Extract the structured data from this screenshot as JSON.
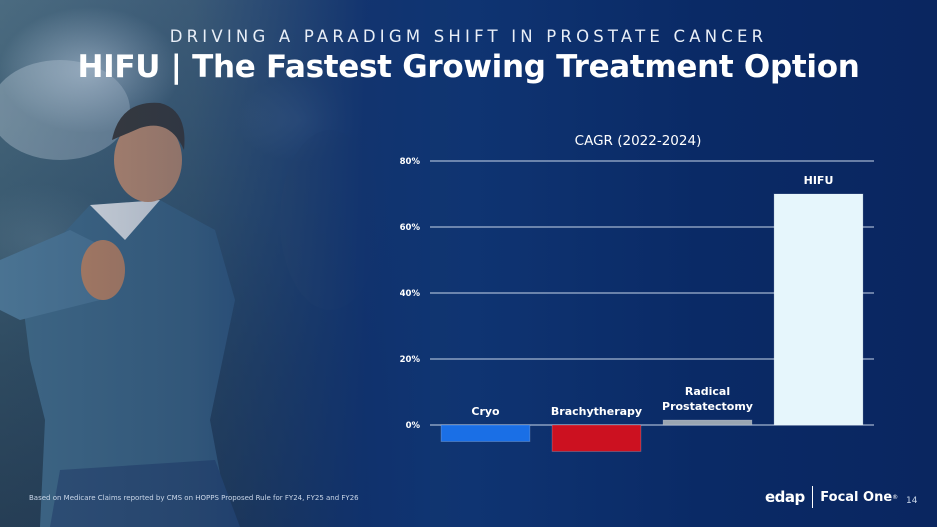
{
  "header": {
    "subtitle": "DRIVING A PARADIGM SHIFT IN PROSTATE CANCER",
    "title": "HIFU | The Fastest Growing Treatment Option"
  },
  "chart_data": {
    "type": "bar",
    "title": "CAGR (2022-2024)",
    "categories": [
      "Cryo",
      "Brachytherapy",
      "Radical Prostatectomy",
      "HIFU"
    ],
    "values": [
      -5,
      -8,
      1.5,
      70
    ],
    "ylim": [
      -10,
      80
    ],
    "yticks": [
      0,
      20,
      40,
      60,
      80
    ],
    "ytick_labels": [
      "0%",
      "20%",
      "40%",
      "60%",
      "80%"
    ],
    "grid": true,
    "colors": [
      "#1a6fe6",
      "#cc1120",
      "#9aa6b2",
      "#e6f6fc"
    ],
    "label_lines": [
      [
        "Cryo"
      ],
      [
        "Brachytherapy"
      ],
      [
        "Radical",
        "Prostatectomy"
      ],
      [
        "HIFU"
      ]
    ]
  },
  "footnote": "Based on Medicare Claims reported by CMS on HOPPS Proposed Rule for FY24, FY25 and FY26",
  "logo": {
    "edap": "edap",
    "focal": "Focal One",
    "mark": "®"
  },
  "page_number": "14"
}
